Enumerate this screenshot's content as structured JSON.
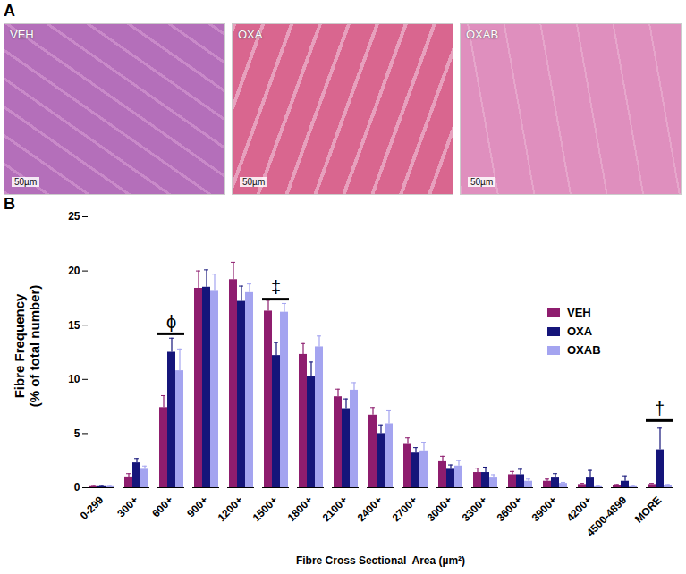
{
  "panel_a": {
    "label": "A",
    "images": [
      {
        "label": "VEH",
        "scale_bar": "50µm"
      },
      {
        "label": "OXA",
        "scale_bar": "50µm"
      },
      {
        "label": "OXAB",
        "scale_bar": "50µm"
      }
    ]
  },
  "chart_data": {
    "type": "bar",
    "panel_label": "B",
    "x_label": "Fibre Cross Sectional  Area (µm²)",
    "y_label": "Fibre Frequency\n(% of total number)",
    "categories": [
      "0-299",
      "300+",
      "600+",
      "900+",
      "1200+",
      "1500+",
      "1800+",
      "2100+",
      "2400+",
      "2700+",
      "3000+",
      "3300+",
      "3600+",
      "3900+",
      "4200+",
      "4500-4899",
      "MORE"
    ],
    "series": [
      {
        "name": "VEH",
        "color": "#8e1d6e",
        "values": [
          0.1,
          1.0,
          7.4,
          18.4,
          19.2,
          16.3,
          12.3,
          8.4,
          6.7,
          4.0,
          2.4,
          1.4,
          1.2,
          0.6,
          0.3,
          0.2,
          0.3
        ],
        "errors": [
          0.1,
          0.3,
          1.1,
          1.6,
          1.6,
          1.0,
          1.0,
          0.7,
          0.7,
          0.6,
          0.5,
          0.4,
          0.3,
          0.2,
          0.1,
          0.1,
          0.1
        ]
      },
      {
        "name": "OXA",
        "color": "#15157a",
        "values": [
          0.1,
          2.3,
          12.5,
          18.5,
          17.2,
          12.2,
          10.3,
          7.3,
          5.0,
          3.2,
          1.7,
          1.4,
          1.2,
          0.9,
          0.9,
          0.6,
          3.5
        ],
        "errors": [
          0.1,
          0.4,
          1.3,
          1.6,
          1.4,
          1.2,
          1.3,
          0.9,
          0.8,
          0.5,
          0.4,
          0.5,
          0.5,
          0.4,
          0.7,
          0.5,
          2.0
        ]
      },
      {
        "name": "OXAB",
        "color": "#a4a4f0",
        "values": [
          0.1,
          1.7,
          10.8,
          18.2,
          18.0,
          16.2,
          13.0,
          9.0,
          5.9,
          3.4,
          2.0,
          0.9,
          0.6,
          0.4,
          0.1,
          0.1,
          0.2
        ],
        "errors": [
          0.1,
          0.3,
          2.0,
          1.5,
          0.8,
          0.8,
          1.0,
          0.7,
          1.2,
          0.8,
          0.5,
          0.3,
          0.2,
          0.1,
          0.1,
          0.1,
          0.1
        ]
      }
    ],
    "annotations": [
      {
        "text": "ϕ",
        "category": "600+",
        "value": 14.2
      },
      {
        "text": "‡",
        "category": "1500+",
        "value": 17.4
      },
      {
        "text": "†",
        "category": "MORE",
        "value": 6.2
      }
    ],
    "ylim": [
      0,
      25
    ],
    "yticks": [
      0,
      5,
      10,
      15,
      20,
      25
    ],
    "grid": false,
    "legend": "right"
  }
}
